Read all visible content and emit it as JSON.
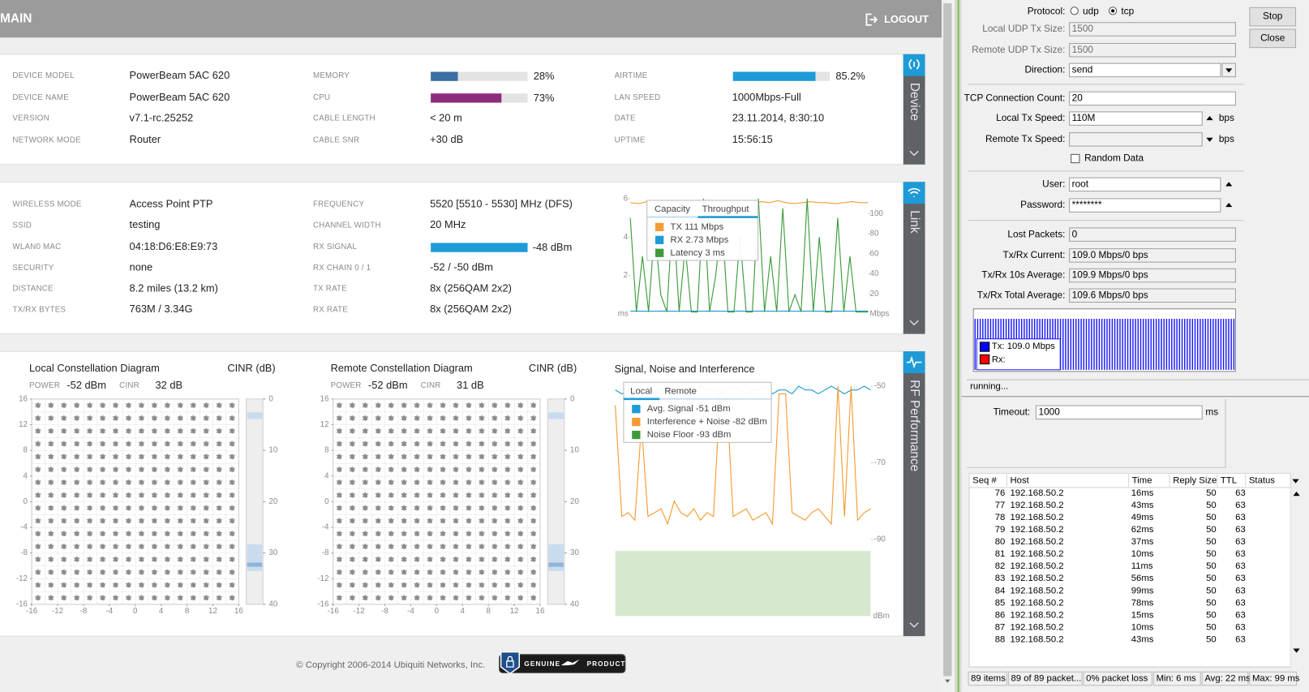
{
  "header": {
    "title": "MAIN",
    "logout": "LOGOUT"
  },
  "device": {
    "tab": "Device",
    "col1": [
      {
        "label": "DEVICE MODEL",
        "value": "PowerBeam 5AC 620"
      },
      {
        "label": "DEVICE NAME",
        "value": "PowerBeam 5AC 620"
      },
      {
        "label": "VERSION",
        "value": "v7.1-rc.25252"
      },
      {
        "label": "NETWORK MODE",
        "value": "Router"
      }
    ],
    "col2": [
      {
        "label": "MEMORY",
        "meter": {
          "value": 28,
          "label": "28%",
          "color": "#3a6ea5"
        }
      },
      {
        "label": "CPU",
        "meter": {
          "value": 73,
          "label": "73%",
          "color": "#8e2c7c"
        }
      },
      {
        "label": "CABLE LENGTH",
        "value": "< 20 m"
      },
      {
        "label": "CABLE SNR",
        "value": "+30 dB"
      }
    ],
    "col3": [
      {
        "label": "AIRTIME",
        "meter": {
          "value": 85.2,
          "label": "85.2%",
          "color": "#1e9bd7"
        }
      },
      {
        "label": "LAN SPEED",
        "value": "1000Mbps-Full"
      },
      {
        "label": "DATE",
        "value": "23.11.2014, 8:30:10"
      },
      {
        "label": "UPTIME",
        "value": "15:56:15"
      }
    ]
  },
  "link": {
    "tab": "Link",
    "col1": [
      {
        "label": "WIRELESS MODE",
        "value": "Access Point PTP"
      },
      {
        "label": "SSID",
        "value": "testing"
      },
      {
        "label": "WLAN0 MAC",
        "value": "04:18:D6:E8:E9:73"
      },
      {
        "label": "SECURITY",
        "value": "none"
      },
      {
        "label": "DISTANCE",
        "value": "8.2 miles (13.2 km)"
      },
      {
        "label": "TX/RX BYTES",
        "value": "763M / 3.34G"
      }
    ],
    "col2": [
      {
        "label": "FREQUENCY",
        "value": "5520 [5510 - 5530] MHz (DFS)"
      },
      {
        "label": "CHANNEL WIDTH",
        "value": "20 MHz"
      },
      {
        "label": "RX SIGNAL",
        "value": "-48 dBm",
        "bar_color": "#1e9bd7"
      },
      {
        "label": "RX CHAIN 0 / 1",
        "value": "-52 / -50 dBm"
      },
      {
        "label": "TX RATE",
        "value": "8x (256QAM 2x2)"
      },
      {
        "label": "RX RATE",
        "value": "8x (256QAM 2x2)"
      }
    ],
    "chart": {
      "type": "line",
      "tabs": [
        "Capacity",
        "Throughput"
      ],
      "y_label": "ms",
      "y2_label": "Mbps",
      "ylim": [
        0,
        6
      ],
      "yticks": [
        2,
        4,
        6
      ],
      "y2lim": [
        0,
        115
      ],
      "y2ticks": [
        20,
        40,
        60,
        80,
        100
      ],
      "series": [
        {
          "name": "TX 111 Mbps",
          "color": "#f39c34",
          "axis": "y2",
          "values": [
            111,
            110,
            112,
            111,
            111,
            113,
            110,
            111,
            112,
            111,
            110,
            111,
            112,
            111,
            111,
            110,
            112,
            111,
            113,
            111,
            110,
            111,
            112,
            111,
            111,
            110,
            111,
            112,
            111,
            111
          ]
        },
        {
          "name": "RX 2.73 Mbps",
          "color": "#1e9bd7",
          "axis": "y2",
          "values": [
            2.7,
            2.8,
            2.7,
            2.7,
            2.8,
            2.7,
            2.7,
            2.8,
            2.7,
            2.7,
            2.8,
            2.7,
            2.7,
            2.8,
            2.7,
            2.7,
            2.8,
            2.7,
            2.7,
            2.8,
            2.7,
            2.7,
            2.8,
            2.7,
            2.7,
            2.8,
            2.7,
            2.7,
            2.8,
            2.7
          ]
        },
        {
          "name": "Latency 3 ms",
          "color": "#3c9b3c",
          "values": [
            5,
            0.1,
            3,
            0.1,
            4.5,
            1,
            0.1,
            5.5,
            0.1,
            3.5,
            0.1,
            0.1,
            6,
            0.1,
            2,
            5,
            0.1,
            0.1,
            4,
            0.1,
            0.1,
            6,
            0.1,
            3,
            0.1,
            5.5,
            0.1,
            1,
            0.1,
            6,
            0.1,
            4,
            0.1,
            0.1,
            5,
            0.1,
            3,
            0.1,
            0.1,
            0.1
          ]
        }
      ]
    }
  },
  "rf": {
    "tab": "RF Performance",
    "constellations": [
      {
        "title": "Local Constellation Diagram",
        "cinr_title": "CINR (dB)",
        "power_label": "POWER",
        "power": "-52 dBm",
        "cinr_label": "CINR",
        "cinr": "32 dB",
        "xlim": [
          -16,
          16
        ],
        "ylim": [
          -16,
          16
        ],
        "xticks": [
          -16,
          -12,
          -8,
          -4,
          0,
          4,
          8,
          12,
          16
        ],
        "yticks": [
          16,
          12,
          8,
          4,
          0,
          -4,
          -8,
          -12,
          -16
        ],
        "cinr_lim": [
          0,
          40
        ],
        "cinr_ticks": [
          0,
          10,
          20,
          30,
          40
        ]
      },
      {
        "title": "Remote Constellation Diagram",
        "cinr_title": "CINR (dB)",
        "power_label": "POWER",
        "power": "-52 dBm",
        "cinr_label": "CINR",
        "cinr": "31 dB",
        "xlim": [
          -16,
          16
        ],
        "ylim": [
          -16,
          16
        ],
        "xticks": [
          -16,
          -12,
          -8,
          -4,
          0,
          4,
          8,
          12,
          16
        ],
        "yticks": [
          16,
          12,
          8,
          4,
          0,
          -4,
          -8,
          -12,
          -16
        ],
        "cinr_lim": [
          0,
          40
        ],
        "cinr_ticks": [
          0,
          10,
          20,
          30,
          40
        ]
      }
    ],
    "chart": {
      "type": "line",
      "title": "Signal, Noise and Interference",
      "tabs": [
        "Local",
        "Remote"
      ],
      "y_label": "dBm",
      "ylim": [
        -110,
        -49
      ],
      "yticks": [
        -50,
        -70,
        -90
      ],
      "series": [
        {
          "name": "Noise Floor -93 dBm",
          "color": "#3c9b3c",
          "area": true,
          "fill": "#d6e9d0",
          "values": [
            -93,
            -93
          ]
        },
        {
          "name": "Avg. Signal -51 dBm",
          "color": "#1e9bd7",
          "values": [
            -51,
            -52,
            -51,
            -50,
            -51,
            -52,
            -51,
            -51,
            -50,
            -52,
            -51,
            -51,
            -52,
            -50,
            -51,
            -51,
            -52,
            -51,
            -50,
            -51,
            -52,
            -51,
            -51,
            -50,
            -52,
            -51,
            -51,
            -52,
            -50,
            -51,
            -51,
            -52,
            -51,
            -50,
            -51,
            -52,
            -51,
            -51,
            -50,
            -51
          ]
        },
        {
          "name": "Interference + Noise -82 dBm",
          "color": "#f39c34",
          "values": [
            -55,
            -84,
            -83,
            -85,
            -60,
            -84,
            -83,
            -82,
            -86,
            -80,
            -83,
            -84,
            -82,
            -85,
            -83,
            -84,
            -52,
            -52,
            -84,
            -83,
            -82,
            -85,
            -84,
            -83,
            -86,
            -52,
            -52,
            -83,
            -84,
            -85,
            -83,
            -82,
            -84,
            -86,
            -50,
            -84,
            -50,
            -85,
            -83,
            -82
          ]
        }
      ],
      "legend_order": [
        1,
        2,
        0
      ]
    }
  },
  "footer": {
    "copyright": "© Copyright 2006-2014 Ubiquiti Networks, Inc.",
    "badge": [
      "GENUINE",
      "PRODUCT"
    ]
  },
  "btest": {
    "protocol_label": "Protocol:",
    "protocol_options": [
      "udp",
      "tcp"
    ],
    "rows": [
      {
        "label": "Local UDP Tx Size:",
        "value": "1500"
      },
      {
        "label": "Remote UDP Tx Size:",
        "value": "1500"
      },
      {
        "label": "Direction:",
        "value": "send"
      },
      {
        "label": "TCP Connection Count:",
        "value": "20"
      },
      {
        "label": "Local Tx Speed:",
        "value": "110M",
        "unit": "bps"
      },
      {
        "label": "Remote Tx Speed:",
        "unit": "bps"
      },
      {
        "label": "User:",
        "value": "root"
      },
      {
        "label": "Password:",
        "value": "********"
      },
      {
        "label": "Lost Packets:",
        "value": "0"
      },
      {
        "label": "Tx/Rx Current:",
        "value": "109.0 Mbps/0 bps"
      },
      {
        "label": "Tx/Rx 10s Average:",
        "value": "109.9 Mbps/0 bps"
      },
      {
        "label": "Tx/Rx Total Average:",
        "value": "109.6 Mbps/0 bps"
      }
    ],
    "random_data": "Random Data",
    "graph_legend": {
      "tx": "Tx:  109.0 Mbps",
      "rx": "Rx:"
    },
    "buttons": [
      "Stop",
      "Close"
    ],
    "status": "running..."
  },
  "ping": {
    "timeout_label": "Timeout:",
    "timeout": "1000",
    "timeout_unit": "ms",
    "columns": [
      "Seq #",
      "Host",
      "Time",
      "Reply Size",
      "TTL",
      "Status"
    ],
    "rows": [
      [
        76,
        "192.168.50.2",
        "16ms",
        50,
        63
      ],
      [
        77,
        "192.168.50.2",
        "43ms",
        50,
        63
      ],
      [
        78,
        "192.168.50.2",
        "49ms",
        50,
        63
      ],
      [
        79,
        "192.168.50.2",
        "62ms",
        50,
        63
      ],
      [
        80,
        "192.168.50.2",
        "37ms",
        50,
        63
      ],
      [
        81,
        "192.168.50.2",
        "10ms",
        50,
        63
      ],
      [
        82,
        "192.168.50.2",
        "11ms",
        50,
        63
      ],
      [
        83,
        "192.168.50.2",
        "56ms",
        50,
        63
      ],
      [
        84,
        "192.168.50.2",
        "99ms",
        50,
        63
      ],
      [
        85,
        "192.168.50.2",
        "78ms",
        50,
        63
      ],
      [
        86,
        "192.168.50.2",
        "15ms",
        50,
        63
      ],
      [
        87,
        "192.168.50.2",
        "10ms",
        50,
        63
      ],
      [
        88,
        "192.168.50.2",
        "43ms",
        50,
        63
      ]
    ],
    "status": [
      "89 items",
      "89 of 89 packet...",
      "0% packet loss",
      "Min: 6 ms",
      "Avg: 22 ms",
      "Max: 99 ms"
    ]
  }
}
